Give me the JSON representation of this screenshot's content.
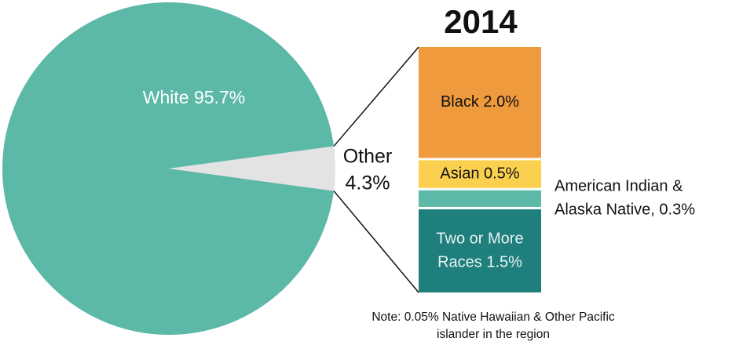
{
  "chart_data": {
    "type": "pie-of-bar",
    "title": "2014",
    "pie": {
      "values": [
        95.7,
        4.3
      ],
      "colors": [
        "#5cb8a7",
        "#e3e3e3"
      ],
      "value_labels": [
        [
          "White 95.7%"
        ],
        [
          "Other",
          "4.3%"
        ]
      ]
    },
    "bar": {
      "values": [
        2.0,
        0.5,
        0.3,
        1.5
      ],
      "colors": [
        "#f09a3e",
        "#fcd04f",
        "#5dbaa8",
        "#1f7f7d"
      ],
      "value_labels": [
        [
          "Black 2.0%"
        ],
        [
          "Asian 0.5%"
        ],
        [
          "American Indian &",
          "Alaska Native, 0.3%"
        ],
        [
          "Two or More",
          "Races 1.5%"
        ]
      ]
    },
    "note": [
      "Note: 0.05% Native Hawaiian & Other Pacific",
      "islander in the region"
    ]
  }
}
